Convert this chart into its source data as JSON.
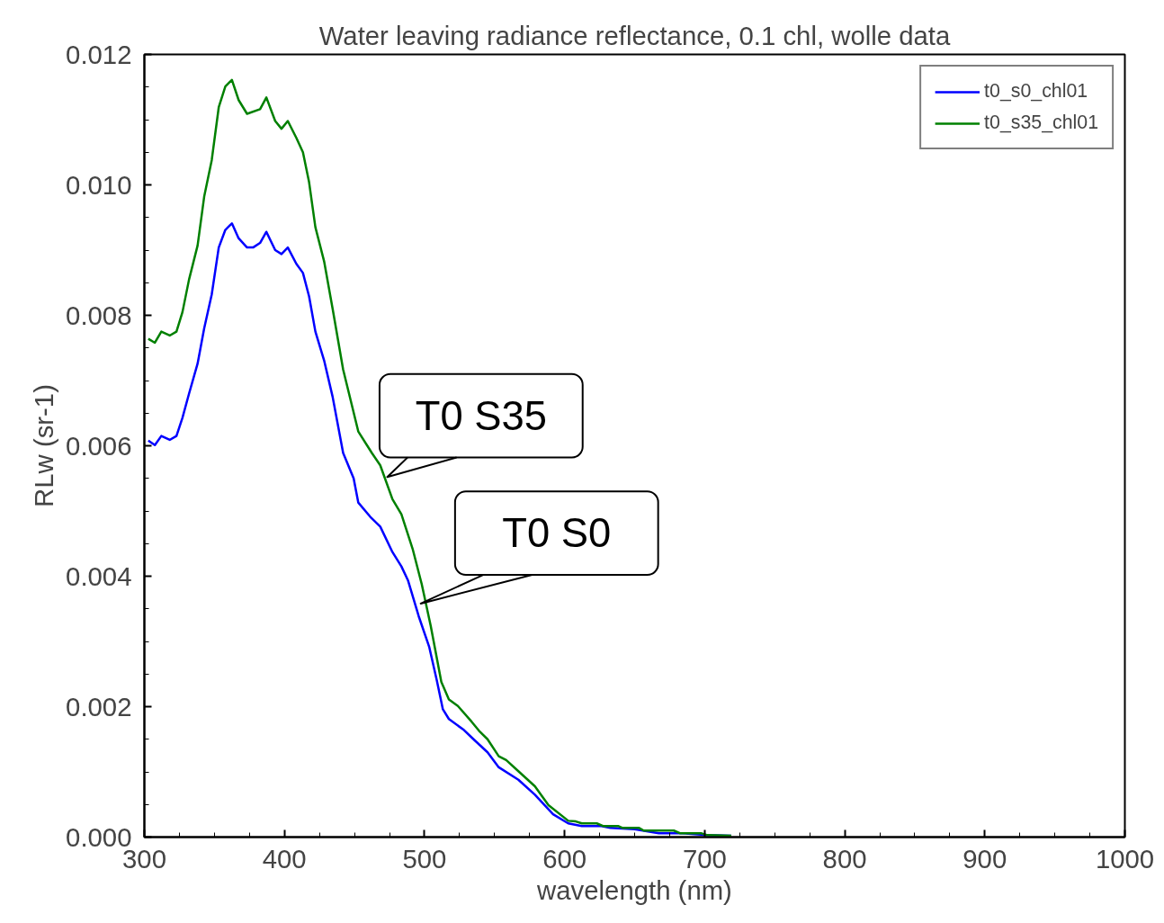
{
  "chart_data": {
    "type": "line",
    "title": "Water leaving radiance reflectance, 0.1 chl, wolle data",
    "xlabel": "wavelength (nm)",
    "ylabel": "RLw (sr-1)",
    "xlim": [
      300,
      1000
    ],
    "xticks": [
      300,
      400,
      500,
      600,
      700,
      800,
      900,
      1000
    ],
    "ylim": [
      0,
      0.012
    ],
    "yticks": [
      {
        "value": 0,
        "label": "0.000"
      },
      {
        "value": 0.002,
        "label": "0.002"
      },
      {
        "value": 0.004,
        "label": "0.004"
      },
      {
        "value": 0.006,
        "label": "0.006"
      },
      {
        "value": 0.008,
        "label": "0.008"
      },
      {
        "value": 0.01,
        "label": "0.010"
      },
      {
        "value": 0.012,
        "label": "0.012"
      }
    ],
    "grid": false,
    "legend": "top right",
    "marker": "none",
    "line_style": "solid",
    "series": [
      {
        "name": "t0_s0_chl01",
        "color": "#0000ff",
        "x": [
          302.8,
          307.5,
          312.1,
          318.1,
          322.9,
          327.2,
          331.9,
          338,
          342.7,
          348.1,
          353.1,
          357.8,
          362.5,
          367.3,
          373.3,
          377.6,
          382.6,
          387.1,
          393.4,
          397.9,
          402.4,
          408.5,
          413.2,
          417.6,
          422.1,
          428.3,
          434.4,
          441.9,
          449.4,
          452.7,
          461.3,
          468.4,
          477.1,
          483.5,
          488.3,
          495.8,
          503.3,
          508.8,
          513.1,
          517.4,
          528.2,
          535,
          545,
          553,
          567,
          578.8,
          591.8,
          602.6,
          612.3,
          626.3,
          632.7,
          650,
          667.3,
          678,
          684.3,
          701.8,
          719
        ],
        "values": [
          0.00608,
          0.00601,
          0.00615,
          0.00609,
          0.00615,
          0.00643,
          0.0068,
          0.00726,
          0.0078,
          0.00832,
          0.00904,
          0.00931,
          0.00941,
          0.00918,
          0.00904,
          0.00904,
          0.00911,
          0.00928,
          0.009,
          0.00894,
          0.00904,
          0.00879,
          0.00865,
          0.00829,
          0.00775,
          0.00731,
          0.00675,
          0.00589,
          0.0055,
          0.00513,
          0.00491,
          0.00476,
          0.00437,
          0.00415,
          0.00393,
          0.00339,
          0.00292,
          0.0024,
          0.00196,
          0.00181,
          0.00164,
          0.0015,
          0.0013,
          0.00107,
          0.00088,
          0.00065,
          0.00035,
          0.00021,
          0.00017,
          0.00017,
          0.00014,
          0.00012,
          6e-05,
          6e-05,
          6e-05,
          3e-05,
          2e-05
        ]
      },
      {
        "name": "t0_s35_chl01",
        "color": "#008000",
        "x": [
          302.8,
          307.5,
          312.1,
          318.1,
          322.9,
          327.2,
          331.9,
          338,
          342.7,
          348.1,
          353.1,
          357.8,
          362.5,
          367.3,
          373.3,
          382.6,
          387.1,
          393.4,
          397.9,
          402.4,
          408.5,
          413.2,
          417.6,
          422.1,
          428.3,
          434.4,
          441.9,
          452.7,
          462.4,
          468.4,
          477.1,
          483.5,
          491.5,
          498,
          504.4,
          512,
          517.4,
          523.8,
          533.6,
          538.9,
          545,
          553,
          558.3,
          567,
          578.8,
          588.5,
          602.6,
          608,
          612.3,
          623,
          627.4,
          638.2,
          641.4,
          653.2,
          656.5,
          678,
          682.3,
          697.4,
          701.8,
          719
        ],
        "values": [
          0.00764,
          0.00758,
          0.00775,
          0.00769,
          0.00775,
          0.00805,
          0.00855,
          0.00907,
          0.00982,
          0.01038,
          0.01119,
          0.01151,
          0.01161,
          0.0113,
          0.01109,
          0.01116,
          0.01134,
          0.01098,
          0.01086,
          0.01098,
          0.01072,
          0.0105,
          0.01004,
          0.00935,
          0.00883,
          0.0081,
          0.00717,
          0.00622,
          0.00589,
          0.0057,
          0.00518,
          0.00495,
          0.00442,
          0.00388,
          0.00324,
          0.00238,
          0.00211,
          0.00201,
          0.00177,
          0.00163,
          0.0015,
          0.00124,
          0.00118,
          0.00101,
          0.00078,
          0.00049,
          0.00025,
          0.00024,
          0.00021,
          0.00021,
          0.00017,
          0.00017,
          0.00014,
          0.00014,
          0.0001,
          0.0001,
          6e-05,
          6e-05,
          3e-05,
          2e-05
        ]
      }
    ],
    "annotations": [
      {
        "text": "T0 S35",
        "x": 473.4,
        "y": 0.00552
      },
      {
        "text": "T0 S0",
        "x": 497.3,
        "y": 0.00358
      }
    ]
  }
}
